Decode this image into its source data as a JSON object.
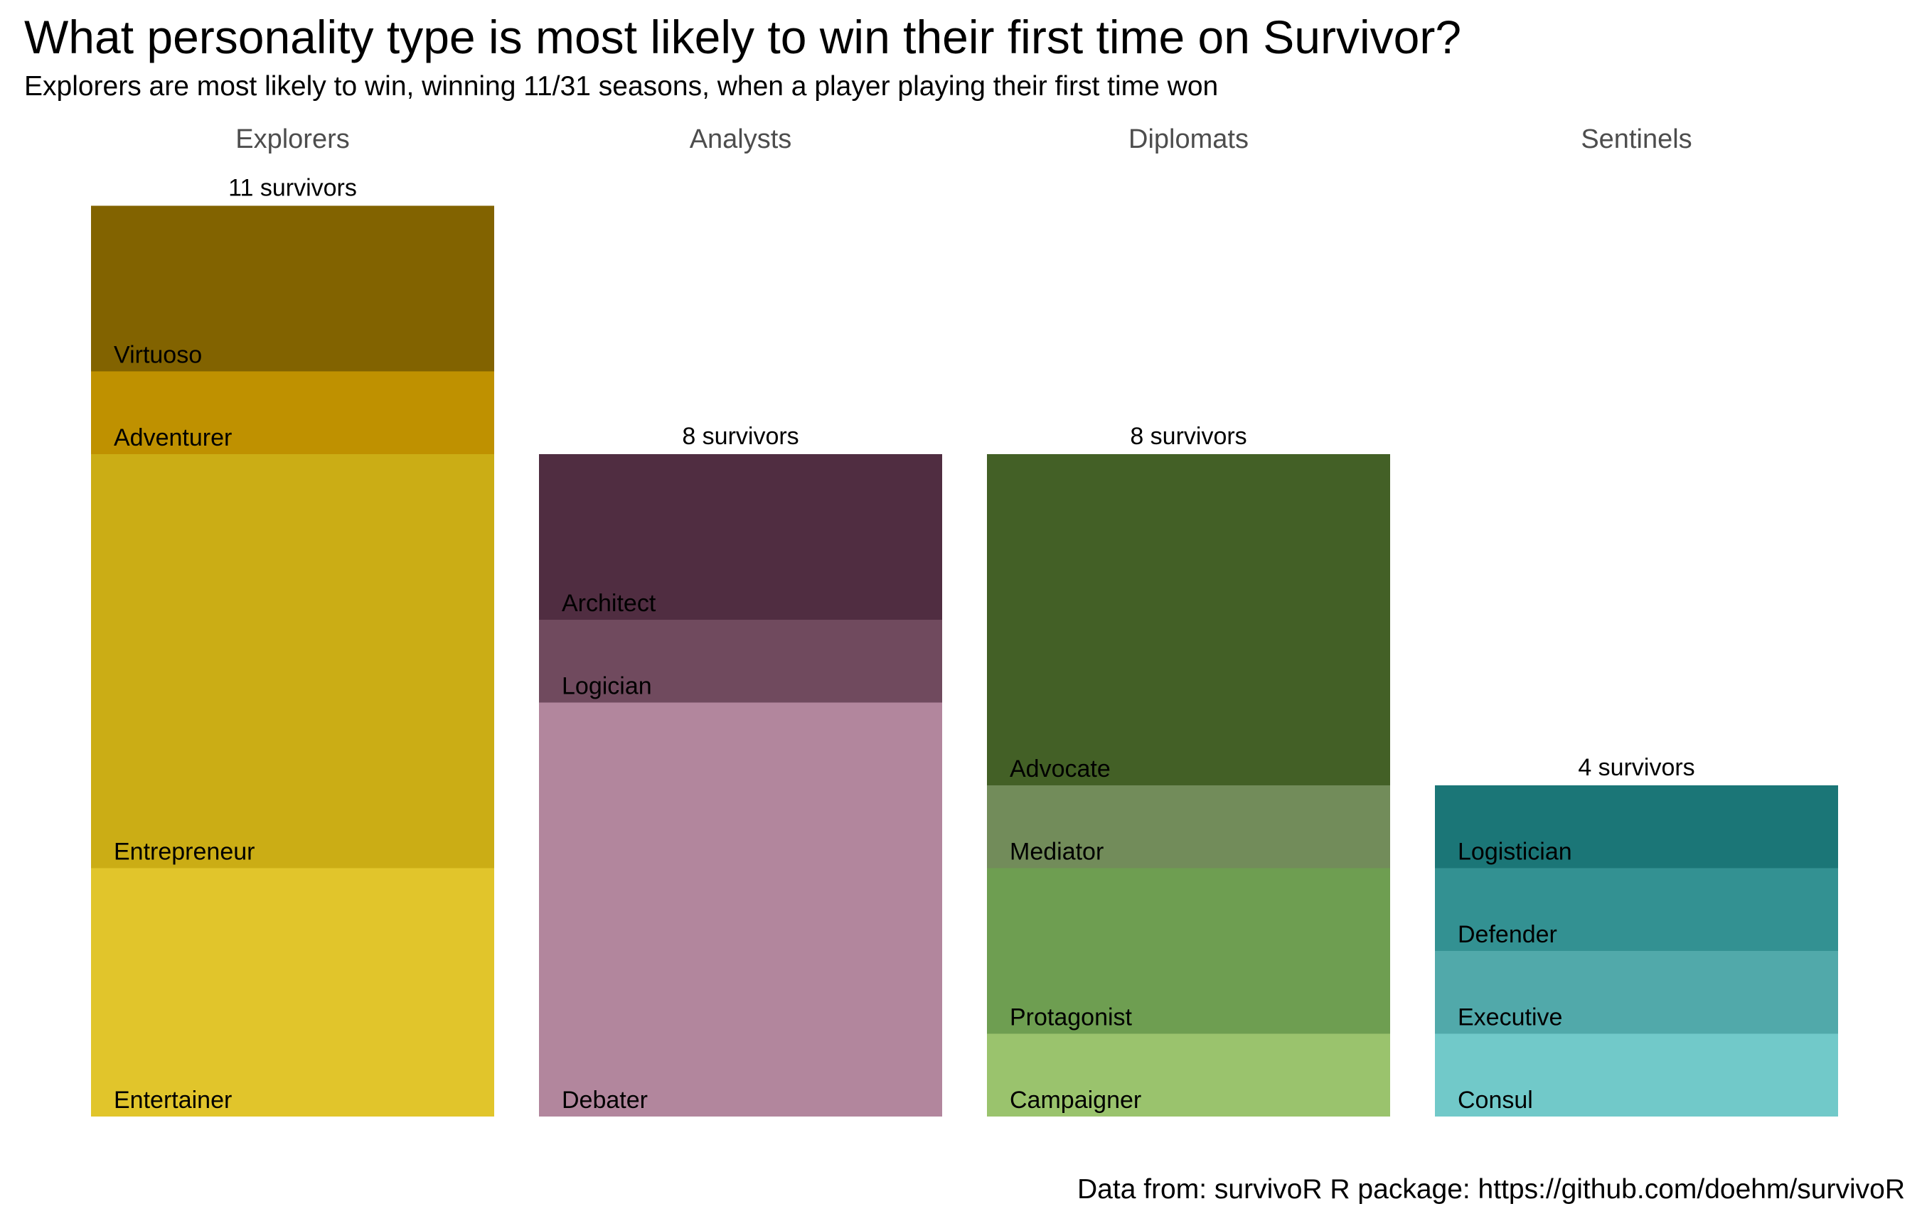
{
  "title": "What personality type is most likely to win their first time on Survivor?",
  "subtitle": "Explorers are most likely to win, winning 11/31 seasons, when a player playing their first time won",
  "caption": "Data from: survivoR R package: https://github.com/doehm/survivoR",
  "chart_data": {
    "type": "bar",
    "stacked": true,
    "facets": [
      "Explorers",
      "Analysts",
      "Diplomats",
      "Sentinels"
    ],
    "total_label_suffix": " survivors",
    "ylim": [
      0,
      11
    ],
    "grid": false,
    "legend": "none",
    "groups": [
      {
        "facet": "Explorers",
        "total": 11,
        "segments": [
          {
            "name": "Entertainer",
            "value": 3,
            "color": "#E1C52B"
          },
          {
            "name": "Entrepreneur",
            "value": 5,
            "color": "#CBAD15"
          },
          {
            "name": "Adventurer",
            "value": 1,
            "color": "#BF9100"
          },
          {
            "name": "Virtuoso",
            "value": 2,
            "color": "#826300"
          }
        ]
      },
      {
        "facet": "Analysts",
        "total": 8,
        "segments": [
          {
            "name": "Debater",
            "value": 5,
            "color": "#B2869D"
          },
          {
            "name": "Logician",
            "value": 1,
            "color": "#704A5E"
          },
          {
            "name": "Architect",
            "value": 2,
            "color": "#502D41"
          }
        ]
      },
      {
        "facet": "Diplomats",
        "total": 8,
        "segments": [
          {
            "name": "Campaigner",
            "value": 1,
            "color": "#9AC36D"
          },
          {
            "name": "Protagonist",
            "value": 2,
            "color": "#6E9E51"
          },
          {
            "name": "Mediator",
            "value": 1,
            "color": "#728C5A"
          },
          {
            "name": "Advocate",
            "value": 4,
            "color": "#436026"
          }
        ]
      },
      {
        "facet": "Sentinels",
        "total": 4,
        "segments": [
          {
            "name": "Consul",
            "value": 1,
            "color": "#71C9C9"
          },
          {
            "name": "Executive",
            "value": 1,
            "color": "#51A9AA"
          },
          {
            "name": "Defender",
            "value": 1,
            "color": "#339192"
          },
          {
            "name": "Logistician",
            "value": 1,
            "color": "#1B7677"
          }
        ]
      }
    ]
  }
}
